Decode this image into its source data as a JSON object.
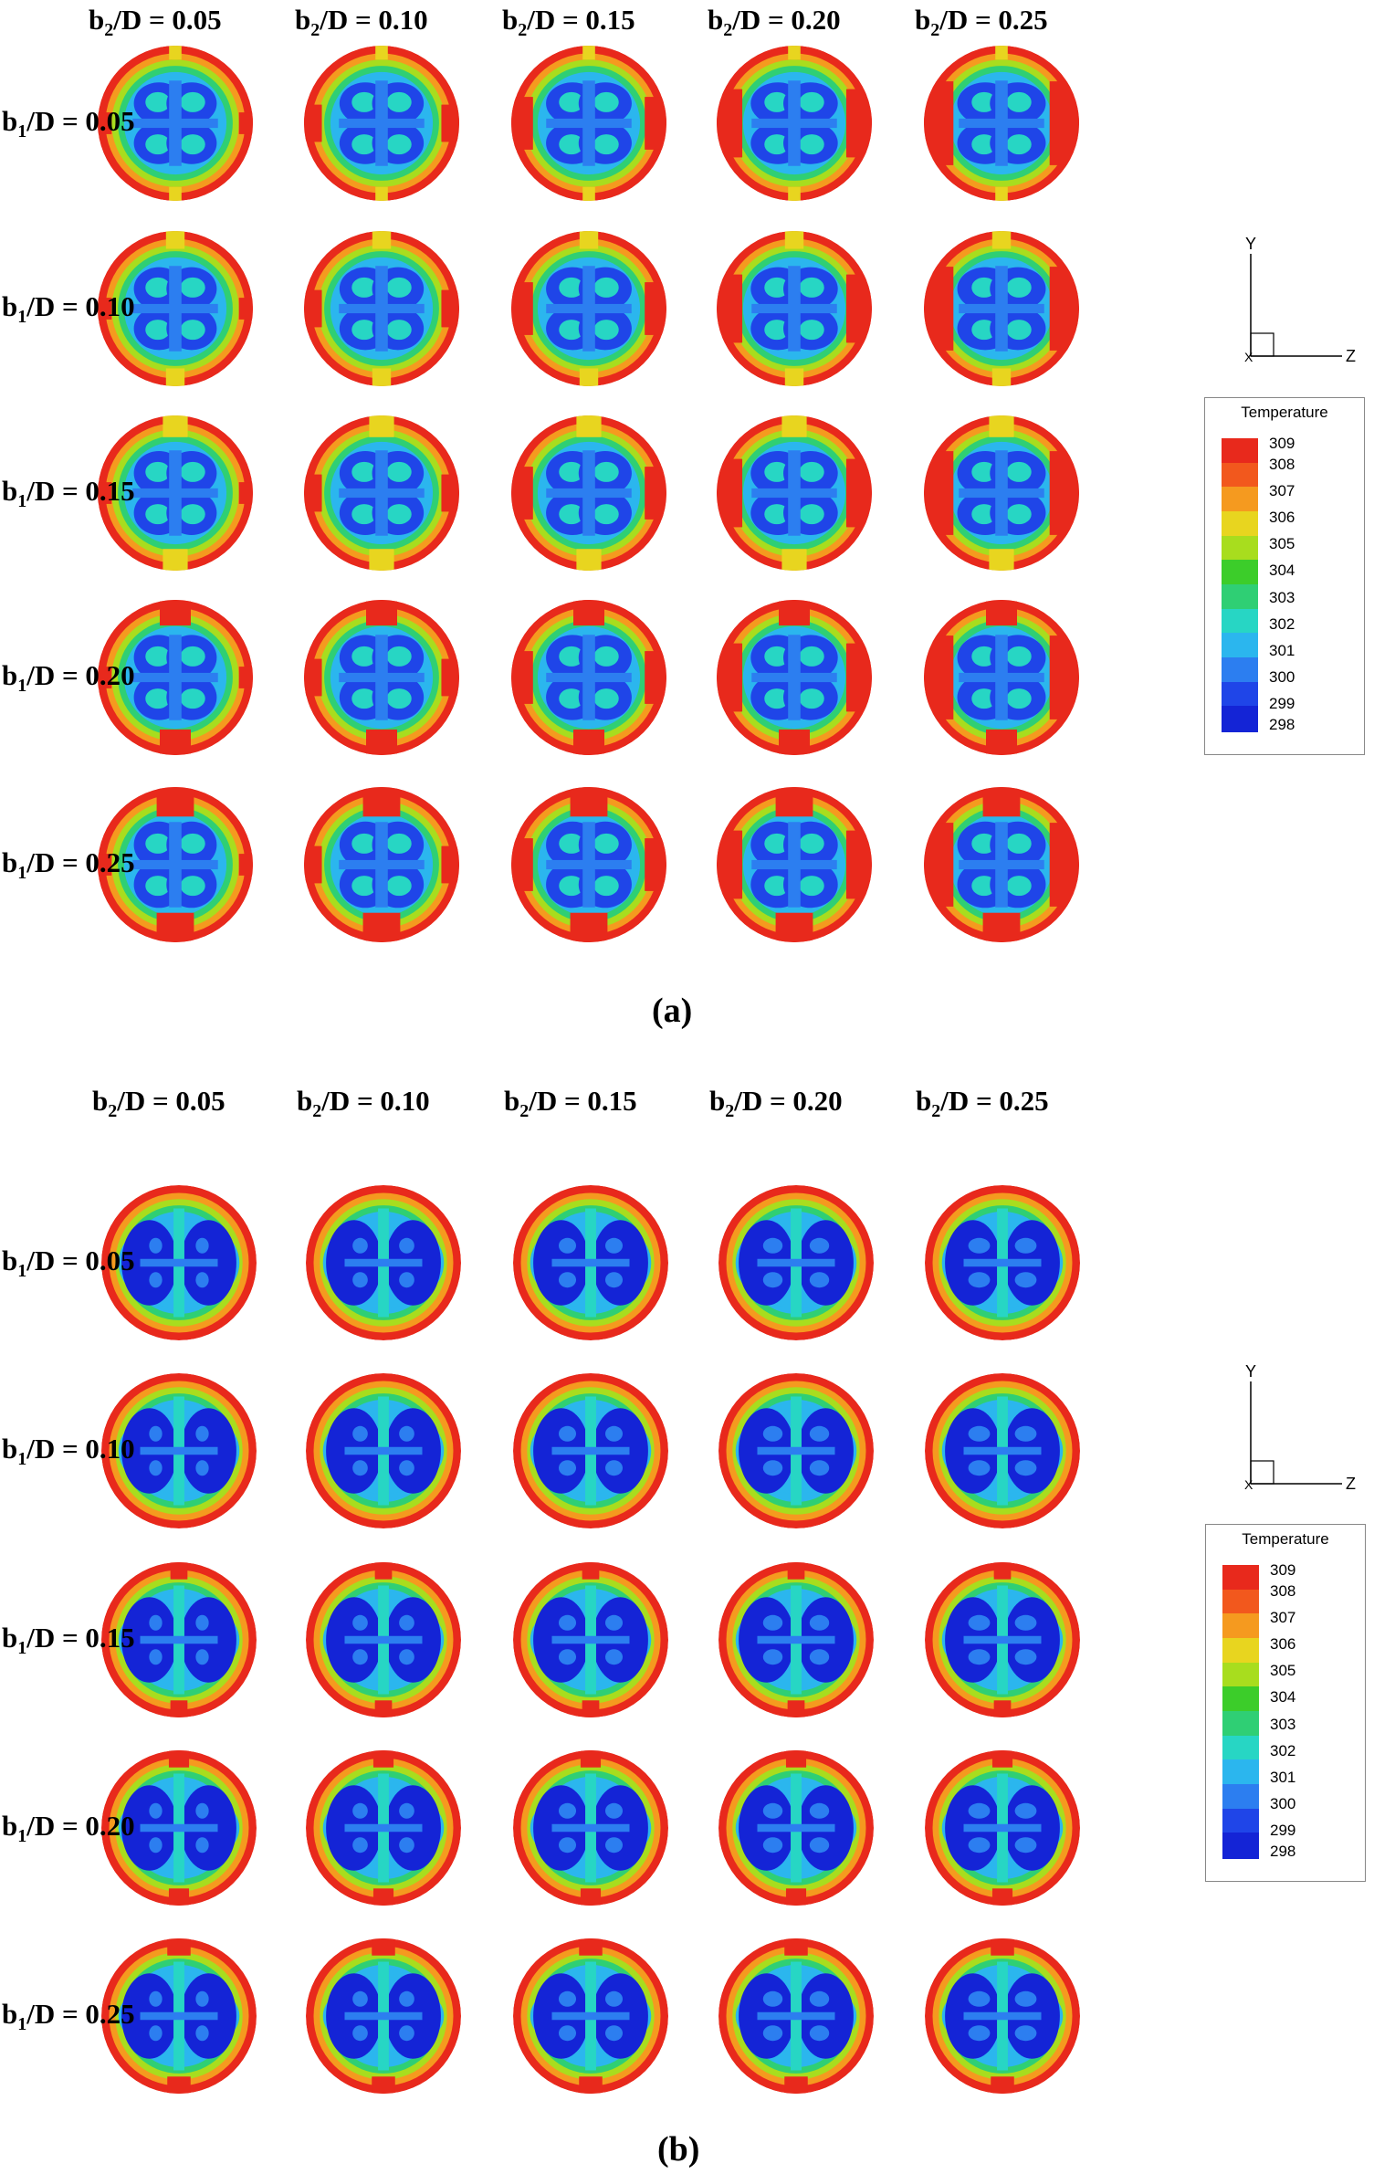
{
  "panels": [
    {
      "letter": "(a)",
      "column_headers": [
        "0.05",
        "0.10",
        "0.15",
        "0.20",
        "0.25"
      ],
      "row_headers": [
        "0.05",
        "0.10",
        "0.15",
        "0.20",
        "0.25"
      ],
      "header_prefix_col": "b",
      "header_sub_col": "2",
      "header_prefix_row": "b",
      "header_sub_row": "1",
      "header_suffix": "/D = "
    },
    {
      "letter": "(b)",
      "column_headers": [
        "0.05",
        "0.10",
        "0.15",
        "0.20",
        "0.25"
      ],
      "row_headers": [
        "0.05",
        "0.10",
        "0.15",
        "0.20",
        "0.25"
      ],
      "header_prefix_col": "b",
      "header_sub_col": "2",
      "header_prefix_row": "b",
      "header_sub_row": "1",
      "header_suffix": "/D = "
    }
  ],
  "legend": {
    "title": "Temperature",
    "ticks": [
      "309",
      "308",
      "307",
      "306",
      "305",
      "304",
      "303",
      "302",
      "301",
      "300",
      "299",
      "298"
    ],
    "colors": [
      "#e8291c",
      "#f2581d",
      "#f59a1f",
      "#e8d51f",
      "#a8dd1e",
      "#3ccd2a",
      "#2fcf74",
      "#27d6c4",
      "#2bb6ee",
      "#2c7ef0",
      "#1f45e8",
      "#1424d6"
    ]
  },
  "axes": {
    "y": "Y",
    "z": "Z",
    "x": "X"
  }
}
